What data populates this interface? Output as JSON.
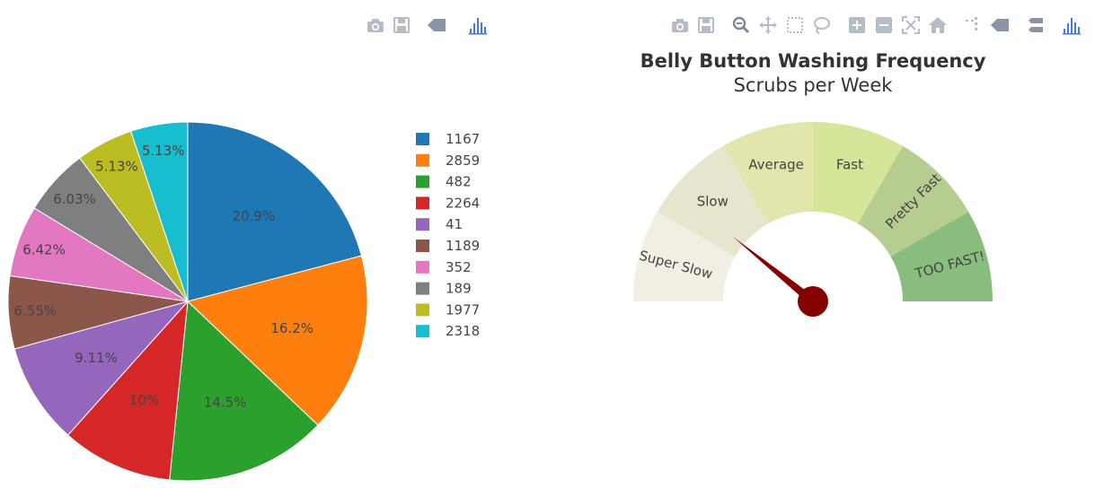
{
  "modebar_left": {
    "buttons": [
      {
        "name": "camera-icon"
      },
      {
        "name": "save-icon"
      },
      {
        "name": "hover-closest-icon"
      },
      {
        "name": "plotly-logo-icon"
      }
    ]
  },
  "modebar_right": {
    "buttons": [
      {
        "name": "camera-icon"
      },
      {
        "name": "save-icon"
      },
      {
        "name": "zoom-icon"
      },
      {
        "name": "pan-icon"
      },
      {
        "name": "box-select-icon"
      },
      {
        "name": "lasso-select-icon"
      },
      {
        "name": "zoom-in-icon"
      },
      {
        "name": "zoom-out-icon"
      },
      {
        "name": "autoscale-icon"
      },
      {
        "name": "reset-axes-icon"
      },
      {
        "name": "spike-lines-icon"
      },
      {
        "name": "hover-closest-icon"
      },
      {
        "name": "hover-compare-icon"
      },
      {
        "name": "plotly-logo-icon"
      }
    ]
  },
  "chart_data": [
    {
      "type": "pie",
      "labels": [
        "1167",
        "2859",
        "482",
        "2264",
        "41",
        "1189",
        "352",
        "189",
        "1977",
        "2318"
      ],
      "percents": [
        20.9,
        16.2,
        14.5,
        10,
        9.11,
        6.55,
        6.42,
        6.03,
        5.13,
        5.13
      ],
      "text_labels": [
        "20.9%",
        "16.2%",
        "14.5%",
        "10%",
        "9.11%",
        "6.55%",
        "6.42%",
        "6.03%",
        "5.13%",
        "5.13%"
      ],
      "colors": [
        "#1f77b4",
        "#ff7f0e",
        "#2ca02c",
        "#d62728",
        "#9467bd",
        "#8c564b",
        "#e377c2",
        "#7f7f7f",
        "#bcbd22",
        "#17becf"
      ],
      "direction": "clockwise",
      "legend_position": "right"
    },
    {
      "type": "gauge",
      "title": "Belly Button Washing Frequency",
      "subtitle": "Scrubs per Week",
      "sectors": [
        "Super Slow",
        "Slow",
        "Average",
        "Fast",
        "Pretty Fast",
        "TOO FAST!"
      ],
      "sector_colors": [
        "#f1efe3",
        "#e6e5cd",
        "#e3e6ac",
        "#d5e599",
        "#b7cd8f",
        "#89bd7e"
      ],
      "needle_value": 1.3,
      "needle_color": "#850000",
      "min": 0,
      "max": 6
    }
  ]
}
